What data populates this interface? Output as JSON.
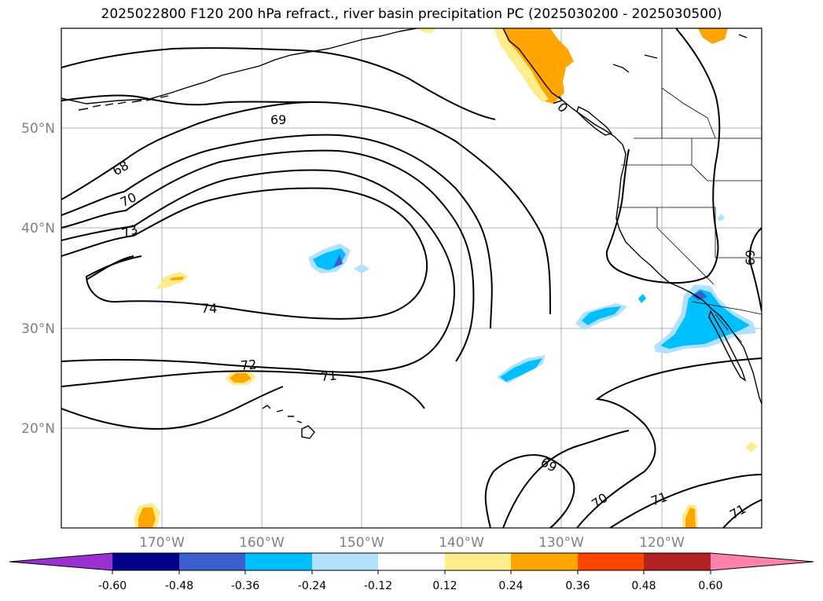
{
  "title": "2025022800 F120 200 hPa refract., river basin precipitation PC (2025030200 - 2025030500)",
  "map": {
    "lat_labels": [
      "50°N",
      "40°N",
      "30°N",
      "20°N"
    ],
    "lon_labels": [
      "170°W",
      "160°W",
      "150°W",
      "140°W",
      "130°W",
      "120°W"
    ],
    "contour_labels": [
      "69",
      "68",
      "70",
      "73",
      "74",
      "72",
      "71",
      "69",
      "70",
      "71",
      "71",
      "70",
      "69"
    ]
  },
  "colorbar": {
    "ticks": [
      "-0.60",
      "-0.48",
      "-0.36",
      "-0.24",
      "-0.12",
      "0.12",
      "0.24",
      "0.36",
      "0.48",
      "0.60"
    ],
    "colors": [
      "#9b30d0",
      "#00008b",
      "#3a5fcd",
      "#00bfff",
      "#b0e2ff",
      "#ffffff",
      "#ffec8b",
      "#ffa500",
      "#ff4500",
      "#b22222",
      "#ff82ab"
    ]
  }
}
